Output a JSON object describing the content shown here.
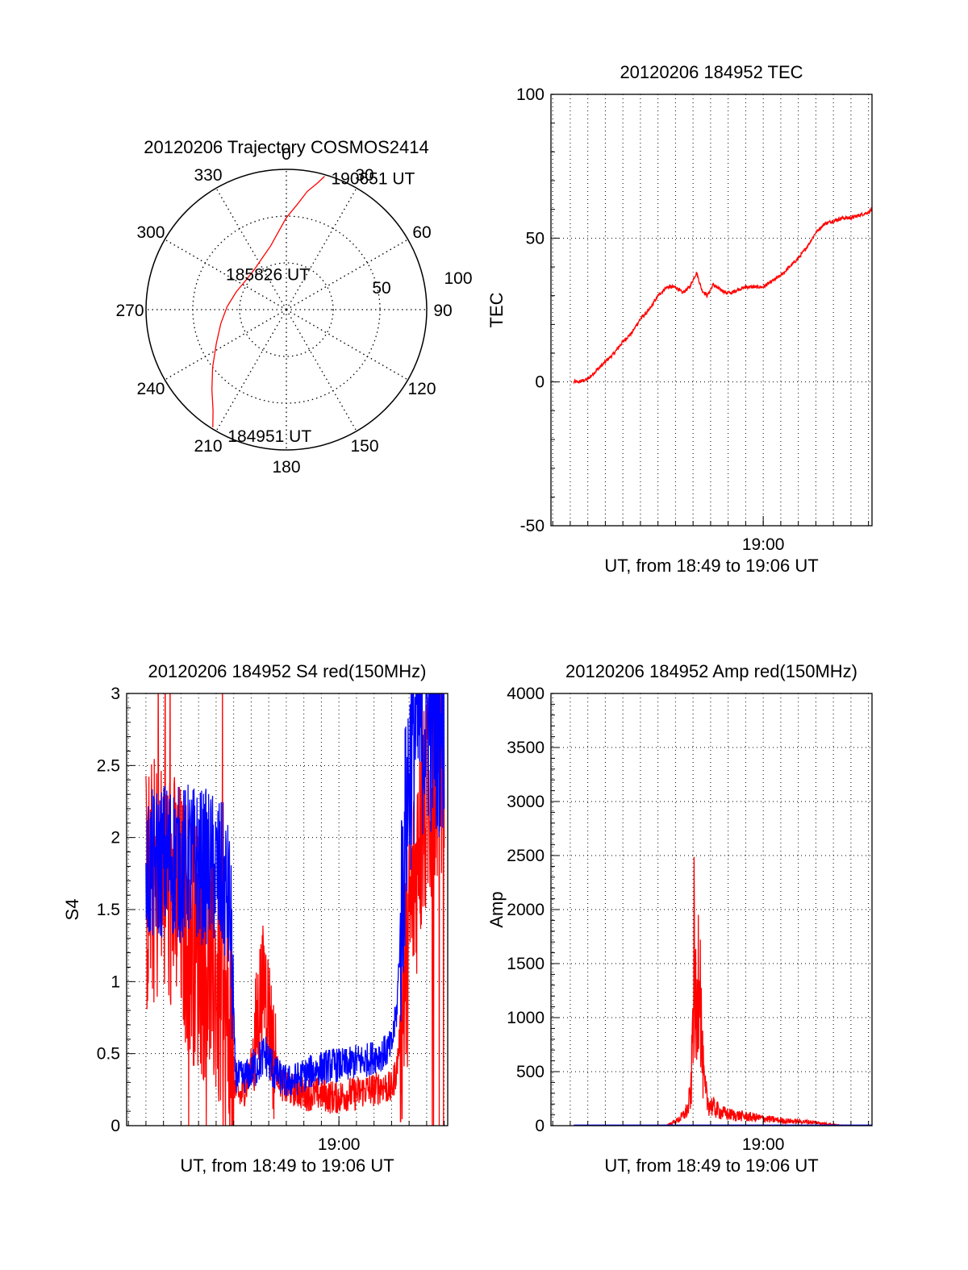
{
  "colors": {
    "red": "#ff0000",
    "blue": "#0000ff",
    "axis": "#000000",
    "grid": "#000000"
  },
  "chart_data": [
    {
      "id": "trajectory",
      "type": "polar",
      "title": "20120206 Trajectory COSMOS2414",
      "angle_labels": [
        "0",
        "30",
        "60",
        "90",
        "120",
        "150",
        "180",
        "210",
        "240",
        "270",
        "300",
        "330"
      ],
      "radial_ticks": [
        {
          "label": "50",
          "elevation": 50
        },
        {
          "label": "100",
          "elevation": 0
        }
      ],
      "series": [
        {
          "color": "red",
          "points_az_el": [
            [
              212,
              1
            ],
            [
              216,
              10
            ],
            [
              223,
              20
            ],
            [
              232,
              30
            ],
            [
              244,
              40
            ],
            [
              258,
              47
            ],
            [
              273,
              52
            ],
            [
              290,
              56
            ],
            [
              308,
              58
            ],
            [
              322,
              57
            ],
            [
              336,
              53
            ],
            [
              346,
              48
            ],
            [
              354,
              40
            ],
            [
              0,
              31
            ],
            [
              6,
              22
            ],
            [
              10,
              13
            ],
            [
              14,
              6
            ],
            [
              16,
              1
            ]
          ]
        }
      ],
      "annotations": [
        {
          "text": "190651 UT",
          "az": 16,
          "el": 1
        },
        {
          "text": "185826 UT",
          "az": 312,
          "el": 74
        },
        {
          "text": "184951 UT",
          "az": 208,
          "el": 1
        }
      ]
    },
    {
      "id": "tec",
      "type": "line",
      "title": "20120206 184952 TEC",
      "xlabel": "UT, from 18:49 to 19:06 UT",
      "ylabel": "TEC",
      "xlim": [
        -12.1,
        6.2
      ],
      "ylim": [
        -50,
        100
      ],
      "x_tick_labels": [
        {
          "x": 0,
          "label": "19:00"
        }
      ],
      "y_ticks": [
        -50,
        0,
        50,
        100
      ],
      "grid": true,
      "series": [
        {
          "color": "red",
          "x": [
            -10.8,
            -10.5,
            -10.0,
            -9.5,
            -9.0,
            -8.5,
            -8.0,
            -7.5,
            -7.0,
            -6.5,
            -6.0,
            -5.5,
            -5.0,
            -4.6,
            -4.2,
            -3.8,
            -3.5,
            -3.2,
            -3.0,
            -2.85,
            -2.7,
            -2.4,
            -2.1,
            -1.8,
            -1.5,
            -1.0,
            -0.5,
            0.0,
            0.5,
            1.0,
            1.5,
            2.0,
            2.5,
            3.0,
            3.5,
            4.0,
            4.5,
            5.0,
            5.5,
            6.0,
            6.2
          ],
          "y": [
            0,
            0,
            1,
            4,
            7,
            10,
            14,
            17,
            22,
            25,
            30,
            33,
            33,
            31,
            33,
            38,
            32,
            30,
            32,
            34,
            33,
            32,
            31,
            31,
            32,
            33,
            33,
            33,
            35,
            37,
            40,
            43,
            47,
            52,
            55,
            56,
            57,
            57,
            58,
            59,
            60
          ]
        }
      ]
    },
    {
      "id": "s4",
      "type": "line",
      "title": "20120206 184952 S4 red(150MHz)",
      "xlabel": "UT, from 18:49 to 19:06 UT",
      "ylabel": "S4",
      "xlim": [
        -12.1,
        6.2
      ],
      "ylim": [
        0,
        3
      ],
      "x_tick_labels": [
        {
          "x": 0,
          "label": "19:00"
        }
      ],
      "y_ticks": [
        0,
        0.5,
        1,
        1.5,
        2,
        2.5,
        3
      ],
      "grid": true,
      "series": [
        {
          "color": "red",
          "x": [
            -11.0,
            -10.5,
            -10.0,
            -9.5,
            -9.0,
            -8.5,
            -8.0,
            -7.5,
            -7.0,
            -6.6,
            -6.2,
            -5.9,
            -5.6,
            -5.2,
            -4.8,
            -4.5,
            -4.2,
            -4.0,
            -3.7,
            -3.3,
            -3.0,
            -2.5,
            -2.0,
            -1.5,
            -1.0,
            -0.5,
            0.0,
            0.5,
            1.0,
            1.5,
            2.0,
            2.5,
            3.0,
            3.3,
            3.6,
            3.9,
            4.2,
            4.5,
            5.0,
            5.5,
            6.0
          ],
          "y": [
            1.6,
            1.7,
            1.7,
            1.6,
            1.5,
            1.35,
            1.25,
            1.15,
            1.0,
            0.8,
            0.6,
            0.25,
            0.2,
            0.3,
            0.55,
            0.9,
            1.0,
            0.8,
            0.45,
            0.3,
            0.25,
            0.25,
            0.22,
            0.22,
            0.22,
            0.2,
            0.2,
            0.22,
            0.22,
            0.25,
            0.25,
            0.28,
            0.25,
            0.4,
            0.8,
            1.2,
            1.6,
            1.9,
            2.2,
            2.4,
            2.6
          ]
        },
        {
          "color": "blue",
          "x": [
            -11.0,
            -10.5,
            -10.0,
            -9.5,
            -9.0,
            -8.5,
            -8.0,
            -7.5,
            -7.0,
            -6.6,
            -6.2,
            -5.9,
            -5.6,
            -5.2,
            -4.8,
            -4.5,
            -4.2,
            -4.0,
            -3.7,
            -3.3,
            -3.0,
            -2.5,
            -2.0,
            -1.5,
            -1.0,
            -0.5,
            0.0,
            0.5,
            1.0,
            1.5,
            2.0,
            2.5,
            3.0,
            3.3,
            3.6,
            3.9,
            4.2,
            4.5,
            5.0,
            5.5,
            6.0
          ],
          "y": [
            1.75,
            1.8,
            1.85,
            1.85,
            1.8,
            1.85,
            1.8,
            1.8,
            1.75,
            1.7,
            1.5,
            0.35,
            0.33,
            0.35,
            0.4,
            0.45,
            0.5,
            0.45,
            0.38,
            0.33,
            0.3,
            0.32,
            0.35,
            0.38,
            0.4,
            0.42,
            0.42,
            0.42,
            0.45,
            0.45,
            0.48,
            0.5,
            0.55,
            0.8,
            1.6,
            2.3,
            2.7,
            2.8,
            2.8,
            2.8,
            2.8
          ]
        }
      ]
    },
    {
      "id": "amp",
      "type": "line",
      "title": "20120206 184952 Amp red(150MHz)",
      "xlabel": "UT, from 18:49 to 19:06 UT",
      "ylabel": "Amp",
      "xlim": [
        -12.1,
        6.2
      ],
      "ylim": [
        0,
        4000
      ],
      "x_tick_labels": [
        {
          "x": 0,
          "label": "19:00"
        }
      ],
      "y_ticks": [
        0,
        500,
        1000,
        1500,
        2000,
        2500,
        3000,
        3500,
        4000
      ],
      "grid": true,
      "series": [
        {
          "color": "red",
          "x": [
            -10.8,
            -8.0,
            -6.0,
            -5.5,
            -5.0,
            -4.6,
            -4.3,
            -4.1,
            -3.95,
            -3.8,
            -3.65,
            -3.5,
            -3.35,
            -3.2,
            -3.0,
            -2.7,
            -2.4,
            -2.0,
            -1.5,
            -1.0,
            -0.5,
            0.0,
            0.5,
            1.0,
            1.5,
            2.0,
            2.5,
            3.0,
            3.5,
            4.0,
            4.5,
            5.0,
            6.2
          ],
          "y": [
            0,
            0,
            0,
            5,
            40,
            90,
            160,
            350,
            1700,
            800,
            2000,
            700,
            350,
            250,
            200,
            160,
            130,
            110,
            100,
            90,
            80,
            70,
            60,
            50,
            45,
            40,
            38,
            30,
            20,
            10,
            5,
            2,
            0
          ]
        },
        {
          "color": "blue",
          "x": [
            -10.8,
            -5.0,
            0.0,
            6.2
          ],
          "y": [
            5,
            5,
            5,
            5
          ]
        }
      ]
    }
  ]
}
